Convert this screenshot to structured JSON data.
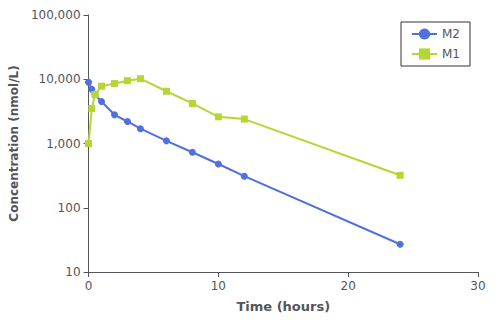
{
  "chart_data": {
    "type": "line",
    "xlabel": "Time (hours)",
    "ylabel": "Concentration (nmol/L)",
    "x": [
      0,
      0.25,
      0.5,
      1,
      2,
      3,
      4,
      6,
      8,
      10,
      12,
      24
    ],
    "series": [
      {
        "name": "M2",
        "marker": "circle",
        "values": [
          9000,
          7000,
          5800,
          4500,
          2800,
          2200,
          1700,
          1100,
          730,
          480,
          310,
          27
        ]
      },
      {
        "name": "M1",
        "marker": "square",
        "values": [
          1000,
          3500,
          5800,
          7800,
          8600,
          9500,
          10200,
          6500,
          4200,
          2600,
          2400,
          320
        ]
      }
    ],
    "xlim": [
      0,
      30
    ],
    "xticks": [
      0,
      10,
      20,
      30
    ],
    "ylim": [
      10,
      100000
    ],
    "yticks": [
      10,
      100,
      {
        "value": 1000,
        "label": "1,000"
      },
      {
        "value": 10000,
        "label": "10,000"
      },
      {
        "value": 100000,
        "label": "100,000"
      }
    ],
    "log": "y",
    "grid": false,
    "legend": "upper right"
  }
}
